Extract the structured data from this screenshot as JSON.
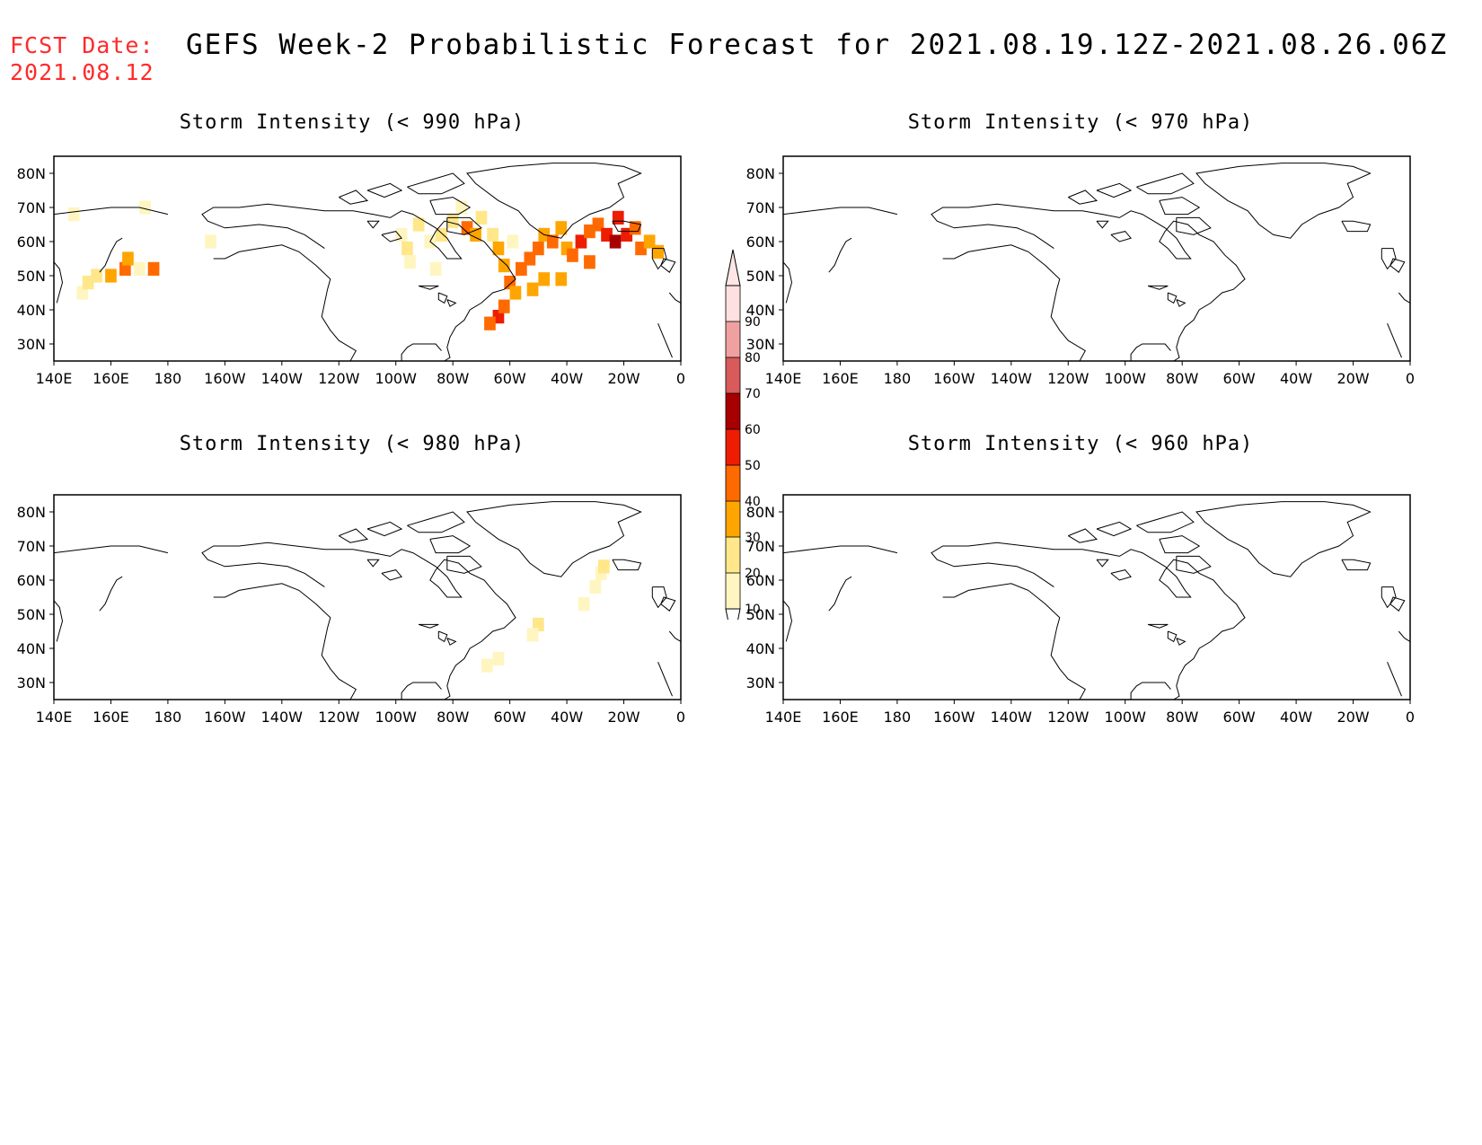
{
  "header": {
    "fcst_label": "FCST Date:",
    "fcst_date": "2021.08.12",
    "title": "GEFS Week-2 Probabilistic Forecast for 2021.08.19.12Z-2021.08.26.06Z"
  },
  "axes": {
    "lat_labels": [
      "80N",
      "70N",
      "60N",
      "50N",
      "40N",
      "30N"
    ],
    "lat_values": [
      80,
      70,
      60,
      50,
      40,
      30
    ],
    "lon_labels": [
      "140E",
      "160E",
      "180",
      "160W",
      "140W",
      "120W",
      "100W",
      "80W",
      "60W",
      "40W",
      "20W",
      "0"
    ],
    "lon_range": [
      140,
      360
    ],
    "lat_range": [
      25,
      85
    ]
  },
  "panels": [
    {
      "id": "p990",
      "title": "Storm Intensity (< 990 hPa)"
    },
    {
      "id": "p970",
      "title": "Storm Intensity (< 970 hPa)"
    },
    {
      "id": "p980",
      "title": "Storm Intensity (< 980 hPa)"
    },
    {
      "id": "p960",
      "title": "Storm Intensity (< 960 hPa)"
    }
  ],
  "colorbar": {
    "labels": [
      "10",
      "20",
      "30",
      "40",
      "50",
      "60",
      "70",
      "80",
      "90"
    ],
    "colors": [
      "#fff5c0",
      "#ffe78a",
      "#ffa500",
      "#ff6a00",
      "#ee1c00",
      "#a80000",
      "#d85a5a",
      "#f0a0a0",
      "#ffe0e0"
    ]
  },
  "chart_data": {
    "type": "heatmap",
    "units": "probability (%)",
    "panels": [
      {
        "id": "p990",
        "cells": [
          [
            150,
            45,
            15
          ],
          [
            152,
            48,
            20
          ],
          [
            155,
            50,
            25
          ],
          [
            160,
            50,
            30
          ],
          [
            165,
            52,
            40
          ],
          [
            166,
            55,
            35
          ],
          [
            170,
            52,
            15
          ],
          [
            175,
            52,
            40
          ],
          [
            147,
            68,
            15
          ],
          [
            172,
            70,
            15
          ],
          [
            195,
            60,
            10
          ],
          [
            262,
            62,
            15
          ],
          [
            264,
            58,
            20
          ],
          [
            265,
            54,
            15
          ],
          [
            268,
            65,
            20
          ],
          [
            272,
            60,
            15
          ],
          [
            276,
            62,
            20
          ],
          [
            280,
            66,
            25
          ],
          [
            283,
            70,
            15
          ],
          [
            285,
            64,
            40
          ],
          [
            288,
            62,
            30
          ],
          [
            290,
            67,
            20
          ],
          [
            294,
            62,
            25
          ],
          [
            296,
            58,
            30
          ],
          [
            298,
            53,
            35
          ],
          [
            300,
            48,
            40
          ],
          [
            302,
            45,
            30
          ],
          [
            296,
            38,
            55
          ],
          [
            298,
            41,
            45
          ],
          [
            293,
            36,
            40
          ],
          [
            301,
            60,
            15
          ],
          [
            304,
            52,
            40
          ],
          [
            307,
            55,
            45
          ],
          [
            310,
            58,
            40
          ],
          [
            312,
            62,
            35
          ],
          [
            315,
            60,
            45
          ],
          [
            318,
            64,
            30
          ],
          [
            320,
            58,
            35
          ],
          [
            322,
            56,
            45
          ],
          [
            325,
            60,
            50
          ],
          [
            328,
            63,
            45
          ],
          [
            331,
            65,
            40
          ],
          [
            334,
            62,
            50
          ],
          [
            337,
            60,
            60
          ],
          [
            338,
            67,
            55
          ],
          [
            341,
            62,
            50
          ],
          [
            344,
            64,
            40
          ],
          [
            346,
            58,
            45
          ],
          [
            349,
            60,
            35
          ],
          [
            352,
            57,
            30
          ],
          [
            328,
            54,
            40
          ],
          [
            318,
            49,
            30
          ],
          [
            312,
            49,
            35
          ],
          [
            308,
            46,
            35
          ],
          [
            274,
            52,
            15
          ]
        ]
      },
      {
        "id": "p970",
        "cells": []
      },
      {
        "id": "p980",
        "cells": [
          [
            332,
            62,
            15
          ],
          [
            333,
            64,
            20
          ],
          [
            330,
            58,
            15
          ],
          [
            326,
            53,
            15
          ],
          [
            310,
            47,
            20
          ],
          [
            308,
            44,
            15
          ],
          [
            296,
            37,
            15
          ],
          [
            292,
            35,
            10
          ]
        ]
      },
      {
        "id": "p960",
        "cells": []
      }
    ]
  }
}
